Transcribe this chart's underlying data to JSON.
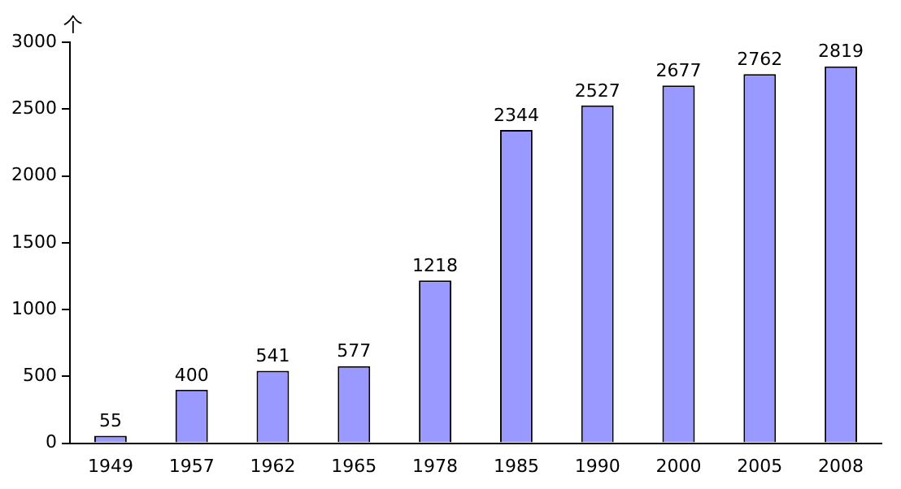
{
  "chart_data": {
    "type": "bar",
    "ylabel": "个",
    "categories": [
      "1949",
      "1957",
      "1962",
      "1965",
      "1978",
      "1985",
      "1990",
      "2000",
      "2005",
      "2008"
    ],
    "values": [
      55,
      400,
      541,
      577,
      1218,
      2344,
      2527,
      2677,
      2762,
      2819
    ],
    "color": "#9999ff",
    "ylim": [
      0,
      3000
    ],
    "yticks": [
      0,
      500,
      1000,
      1500,
      2000,
      2500,
      3000
    ],
    "grid": false,
    "legend": false,
    "data_labels": true
  }
}
